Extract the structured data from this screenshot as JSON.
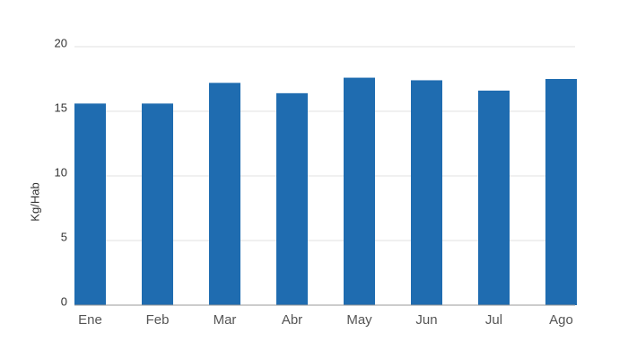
{
  "chart_data": {
    "type": "bar",
    "y_label": "Kg/Hab",
    "categories": [
      "Ene",
      "Feb",
      "Mar",
      "Abr",
      "May",
      "Jun",
      "Jul",
      "Ago"
    ],
    "values": [
      15.6,
      15.6,
      17.2,
      16.4,
      17.6,
      17.4,
      16.6,
      17.5
    ],
    "color": "#1f6cb0",
    "ylim": [
      0,
      20
    ],
    "yticks": [
      0,
      5,
      10,
      15,
      20
    ],
    "grid": true
  }
}
